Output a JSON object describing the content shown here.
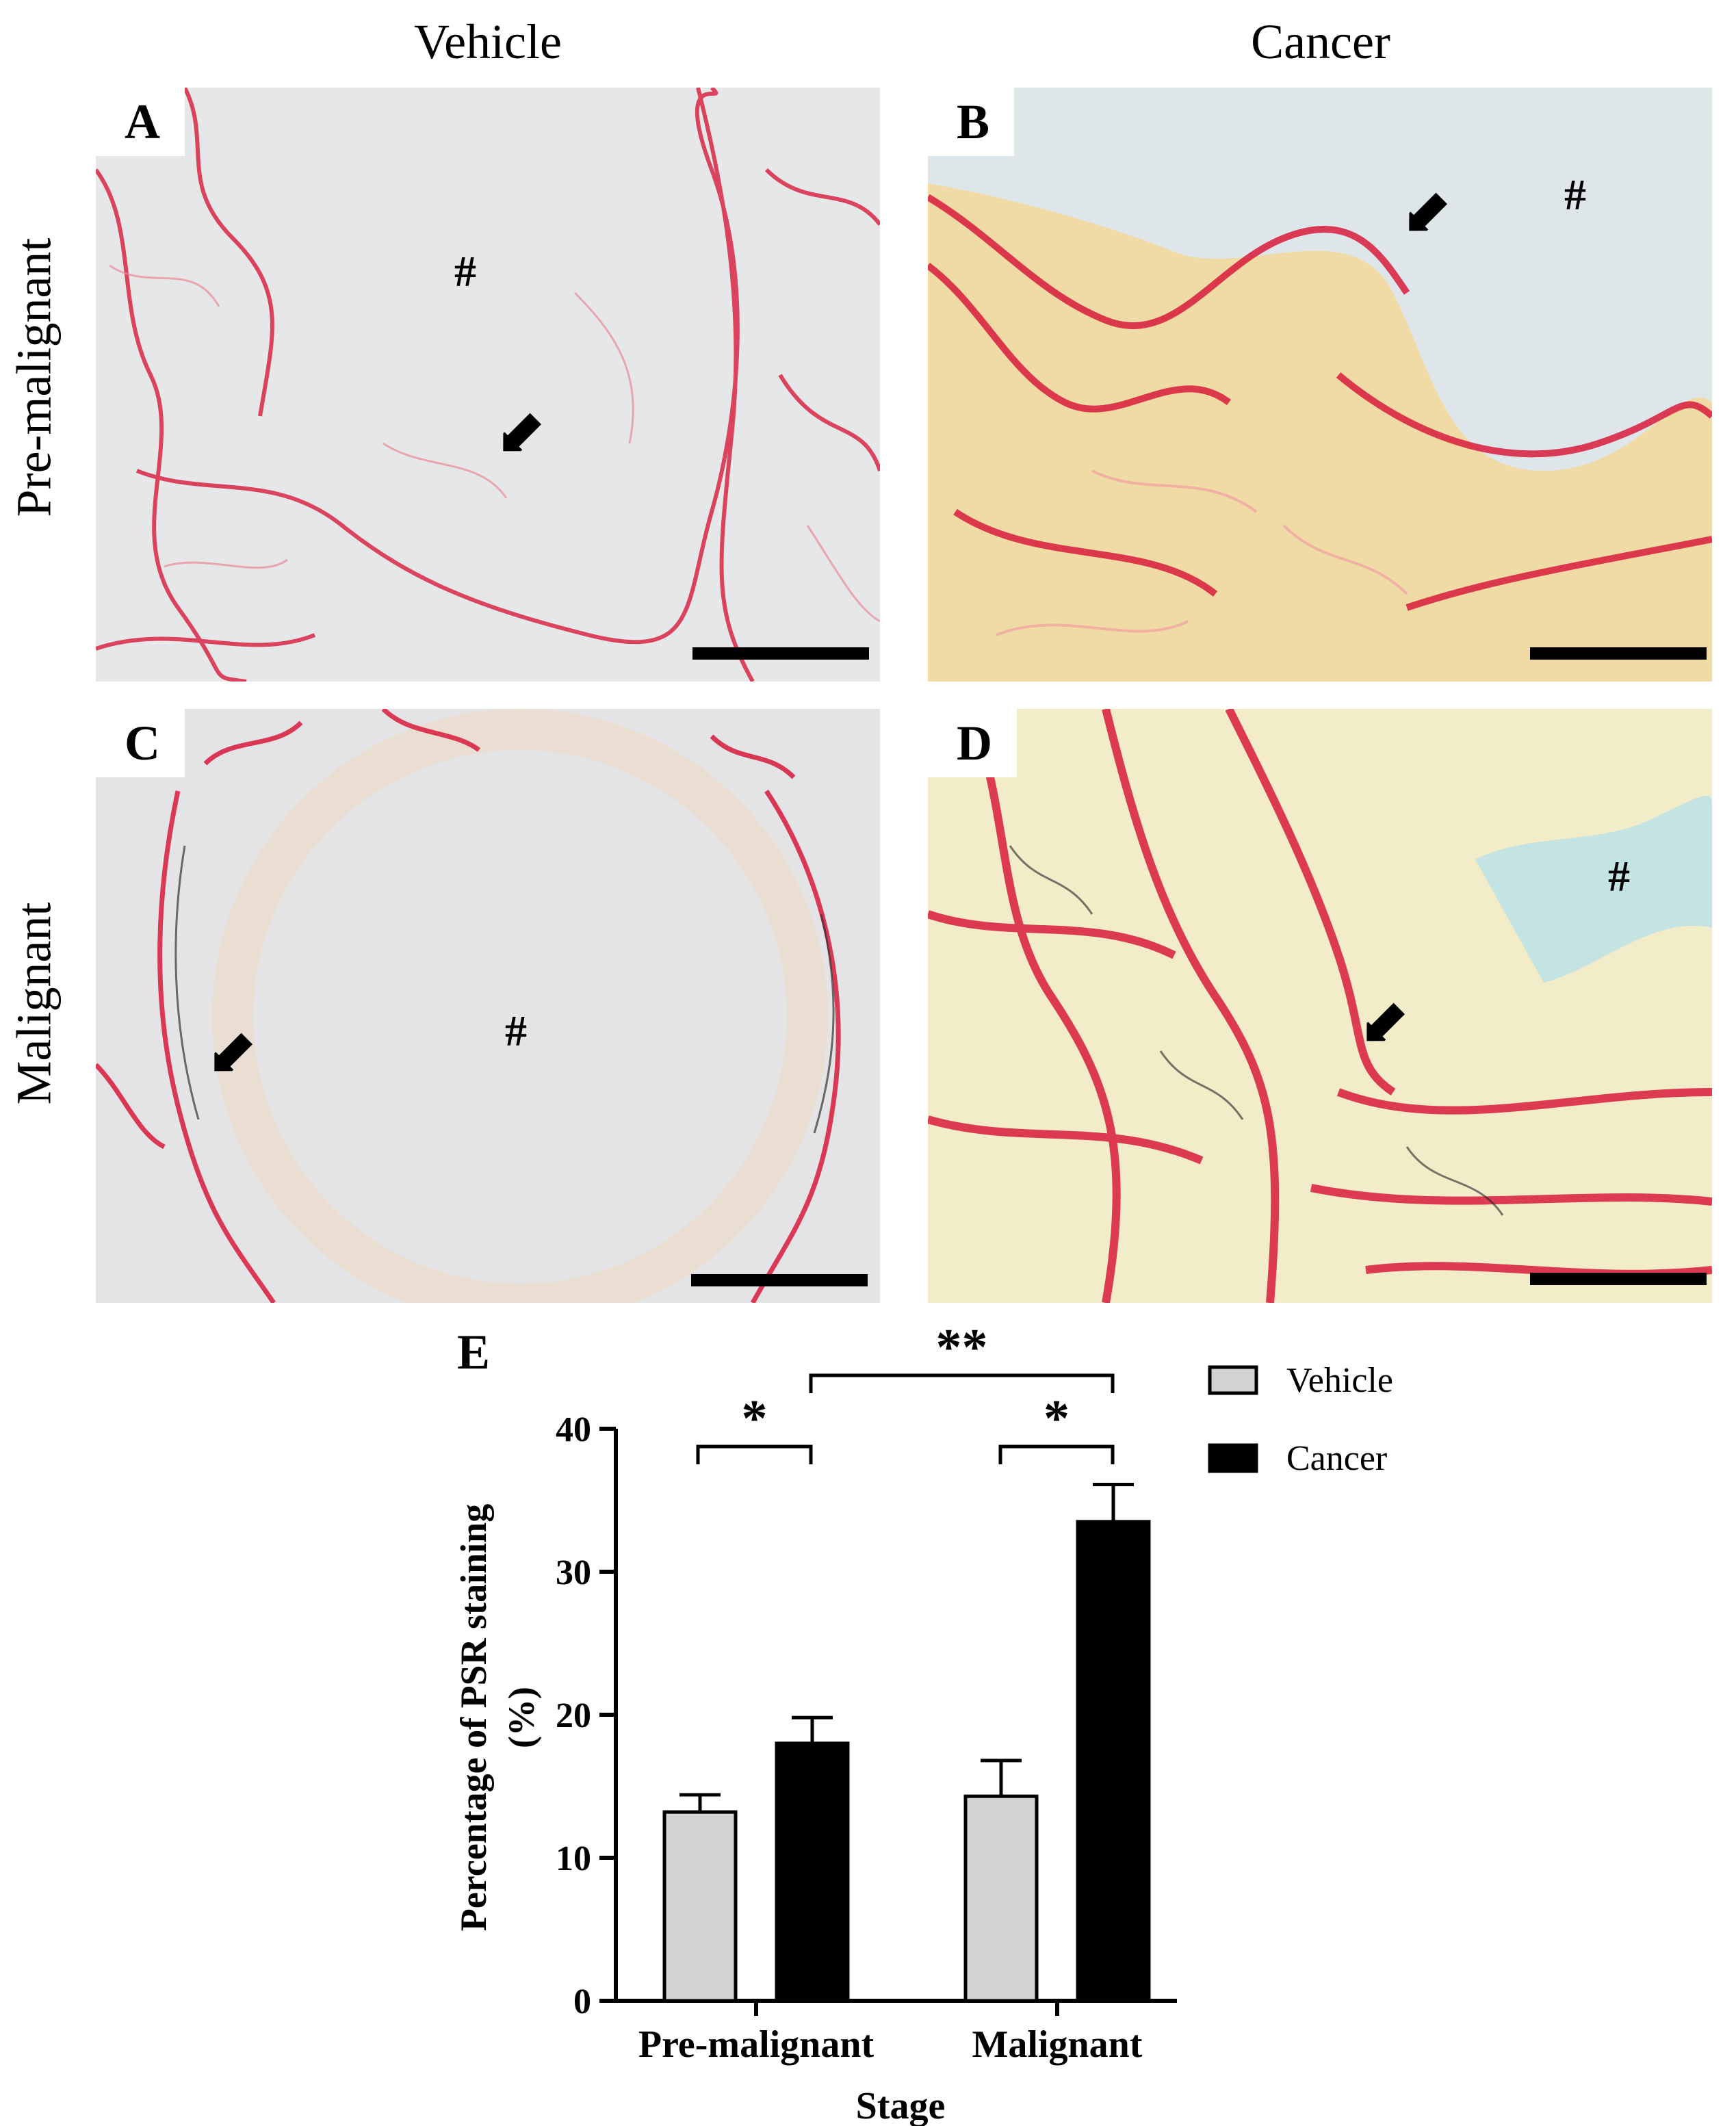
{
  "columns": [
    "Vehicle",
    "Cancer"
  ],
  "rows": [
    "Pre-malignant",
    "Malignant"
  ],
  "panels": [
    {
      "letter": "A",
      "hash": "#"
    },
    {
      "letter": "B",
      "hash": "#"
    },
    {
      "letter": "C",
      "hash": "#"
    },
    {
      "letter": "D",
      "hash": "#"
    }
  ],
  "colors": {
    "vehicle_bar": "#d3d3d3",
    "cancer_bar": "#000000",
    "stain": "#d81b3c",
    "background": "#dfe3e6"
  },
  "chart_data": {
    "type": "bar",
    "panel_letter": "E",
    "categories": [
      "Pre-malignant",
      "Malignant"
    ],
    "series": [
      {
        "name": "Vehicle",
        "values": [
          13.2,
          14.3
        ],
        "errors": [
          1.2,
          2.5
        ],
        "color": "#d3d3d3"
      },
      {
        "name": "Cancer",
        "values": [
          18.0,
          33.5
        ],
        "errors": [
          1.8,
          2.6
        ],
        "color": "#000000"
      }
    ],
    "title": "",
    "xlabel": "Stage",
    "ylabel": "Percentage of PSR staining (%)",
    "ylabel_lines": [
      "Percentage of PSR staining",
      "(%)"
    ],
    "ylim": [
      0,
      40
    ],
    "yticks": [
      0,
      10,
      20,
      30,
      40
    ],
    "legend": "top-right",
    "significance": [
      {
        "label": "*",
        "between": "Pre-malignant Vehicle vs Pre-malignant Cancer"
      },
      {
        "label": "*",
        "between": "Malignant Vehicle vs Malignant Cancer"
      },
      {
        "label": "**",
        "between": "Pre-malignant Cancer vs Malignant Cancer"
      }
    ]
  }
}
